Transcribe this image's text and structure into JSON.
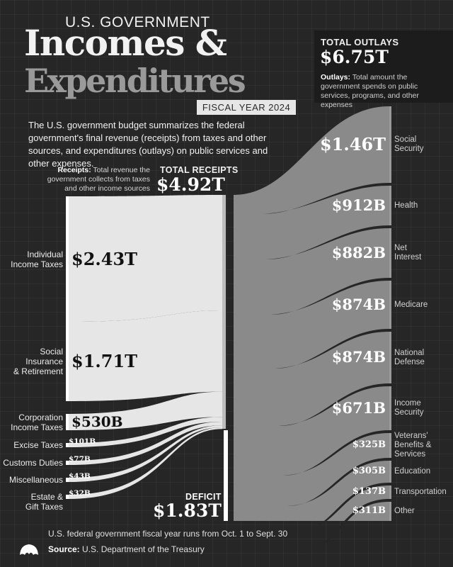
{
  "header": {
    "kicker": "U.S. GOVERNMENT",
    "title_line1": "Incomes &",
    "title_line2": "Expenditures",
    "fiscal_year": "FISCAL YEAR 2024",
    "intro": "The U.S. government budget summarizes the federal government's final revenue (receipts) from taxes and other sources, and expenditures (outlays) on public services and other expenses."
  },
  "outlays_box": {
    "kicker": "TOTAL OUTLAYS",
    "value": "$6.75T",
    "desc_bold": "Outlays:",
    "desc": " Total amount the government spends on public services, programs, and other expenses"
  },
  "receipts_box": {
    "kicker": "TOTAL RECEIPTS",
    "value": "$4.92T",
    "desc_bold": "Receipts:",
    "desc": " Total revenue the government collects from taxes and other income sources"
  },
  "deficit": {
    "kicker": "DEFICIT",
    "value": "$1.83T"
  },
  "chart_data": {
    "type": "sankey",
    "units": "USD billions",
    "sources": [
      {
        "name": "Individual Income Taxes",
        "label_lines": [
          "Individual",
          "Income Taxes"
        ],
        "value": 2430,
        "value_label": "$2.43T"
      },
      {
        "name": "Social Insurance & Retirement",
        "label_lines": [
          "Social",
          "Insurance",
          "& Retirement"
        ],
        "value": 1710,
        "value_label": "$1.71T"
      },
      {
        "name": "Corporation Income Taxes",
        "label_lines": [
          "Corporation",
          "Income Taxes"
        ],
        "value": 530,
        "value_label": "$530B"
      },
      {
        "name": "Excise Taxes",
        "label_lines": [
          "Excise Taxes"
        ],
        "value": 101,
        "value_label": "$101B"
      },
      {
        "name": "Customs Duties",
        "label_lines": [
          "Customs Duties"
        ],
        "value": 77,
        "value_label": "$77B"
      },
      {
        "name": "Miscellaneous",
        "label_lines": [
          "Miscellaneous"
        ],
        "value": 43,
        "value_label": "$43B"
      },
      {
        "name": "Estate & Gift Taxes",
        "label_lines": [
          "Estate &",
          "Gift Taxes"
        ],
        "value": 32,
        "value_label": "$32B"
      }
    ],
    "deficit": {
      "value": 1830,
      "value_label": "$1.83T"
    },
    "total_receipts": {
      "value": 4920,
      "value_label": "$4.92T"
    },
    "total_outlays": {
      "value": 6750,
      "value_label": "$6.75T"
    },
    "outlays": [
      {
        "name": "Social Security",
        "label_lines": [
          "Social",
          "Security"
        ],
        "value": 1460,
        "value_label": "$1.46T"
      },
      {
        "name": "Health",
        "label_lines": [
          "Health"
        ],
        "value": 912,
        "value_label": "$912B"
      },
      {
        "name": "Net Interest",
        "label_lines": [
          "Net",
          "Interest"
        ],
        "value": 882,
        "value_label": "$882B"
      },
      {
        "name": "Medicare",
        "label_lines": [
          "Medicare"
        ],
        "value": 874,
        "value_label": "$874B"
      },
      {
        "name": "National Defense",
        "label_lines": [
          "National",
          "Defense"
        ],
        "value": 874,
        "value_label": "$874B"
      },
      {
        "name": "Income Security",
        "label_lines": [
          "Income",
          "Security"
        ],
        "value": 671,
        "value_label": "$671B"
      },
      {
        "name": "Veterans' Benefits & Services",
        "label_lines": [
          "Veterans'",
          "Benefits &",
          "Services"
        ],
        "value": 325,
        "value_label": "$325B"
      },
      {
        "name": "Education",
        "label_lines": [
          "Education"
        ],
        "value": 305,
        "value_label": "$305B"
      },
      {
        "name": "Transportation",
        "label_lines": [
          "Transportation"
        ],
        "value": 137,
        "value_label": "$137B"
      },
      {
        "name": "Other",
        "label_lines": [
          "Other"
        ],
        "value": 311,
        "value_label": "$311B"
      }
    ],
    "colors": {
      "receipts": "#e6e6e6",
      "outlays": "#8a8a8a",
      "deficit": "#ffffff"
    }
  },
  "footer": {
    "note": "U.S. federal government fiscal year runs from Oct. 1 to Sept. 30",
    "source_label": "Source:",
    "source": " U.S. Department of the Treasury"
  }
}
